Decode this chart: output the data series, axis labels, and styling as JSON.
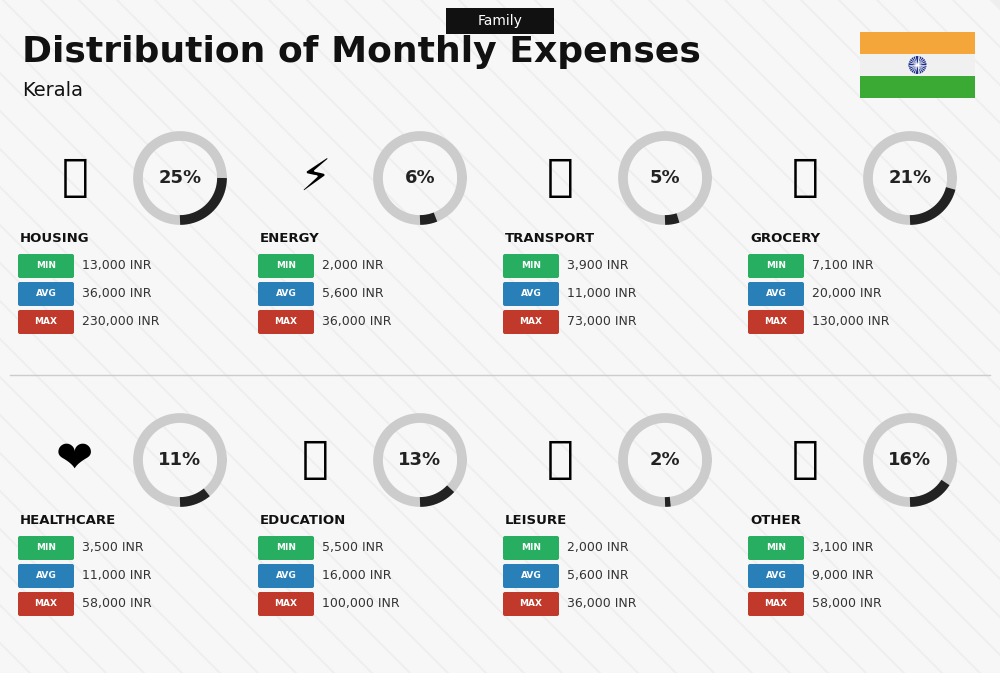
{
  "title": "Distribution of Monthly Expenses",
  "subtitle": "Kerala",
  "tag": "Family",
  "bg_color": "#eeeeee",
  "title_color": "#111111",
  "categories": [
    {
      "name": "HOUSING",
      "pct": 25,
      "min": "13,000 INR",
      "avg": "36,000 INR",
      "max": "230,000 INR",
      "row": 0,
      "col": 0
    },
    {
      "name": "ENERGY",
      "pct": 6,
      "min": "2,000 INR",
      "avg": "5,600 INR",
      "max": "36,000 INR",
      "row": 0,
      "col": 1
    },
    {
      "name": "TRANSPORT",
      "pct": 5,
      "min": "3,900 INR",
      "avg": "11,000 INR",
      "max": "73,000 INR",
      "row": 0,
      "col": 2
    },
    {
      "name": "GROCERY",
      "pct": 21,
      "min": "7,100 INR",
      "avg": "20,000 INR",
      "max": "130,000 INR",
      "row": 0,
      "col": 3
    },
    {
      "name": "HEALTHCARE",
      "pct": 11,
      "min": "3,500 INR",
      "avg": "11,000 INR",
      "max": "58,000 INR",
      "row": 1,
      "col": 0
    },
    {
      "name": "EDUCATION",
      "pct": 13,
      "min": "5,500 INR",
      "avg": "16,000 INR",
      "max": "100,000 INR",
      "row": 1,
      "col": 1
    },
    {
      "name": "LEISURE",
      "pct": 2,
      "min": "2,000 INR",
      "avg": "5,600 INR",
      "max": "36,000 INR",
      "row": 1,
      "col": 2
    },
    {
      "name": "OTHER",
      "pct": 16,
      "min": "3,100 INR",
      "avg": "9,000 INR",
      "max": "58,000 INR",
      "row": 1,
      "col": 3
    }
  ],
  "min_color": "#27ae60",
  "avg_color": "#2980b9",
  "max_color": "#c0392b",
  "arc_dark": "#222222",
  "arc_light": "#cccccc",
  "india_flag_orange": "#F4A63A",
  "india_flag_green": "#3BAA35",
  "india_flag_chakra": "#1A2F8A"
}
